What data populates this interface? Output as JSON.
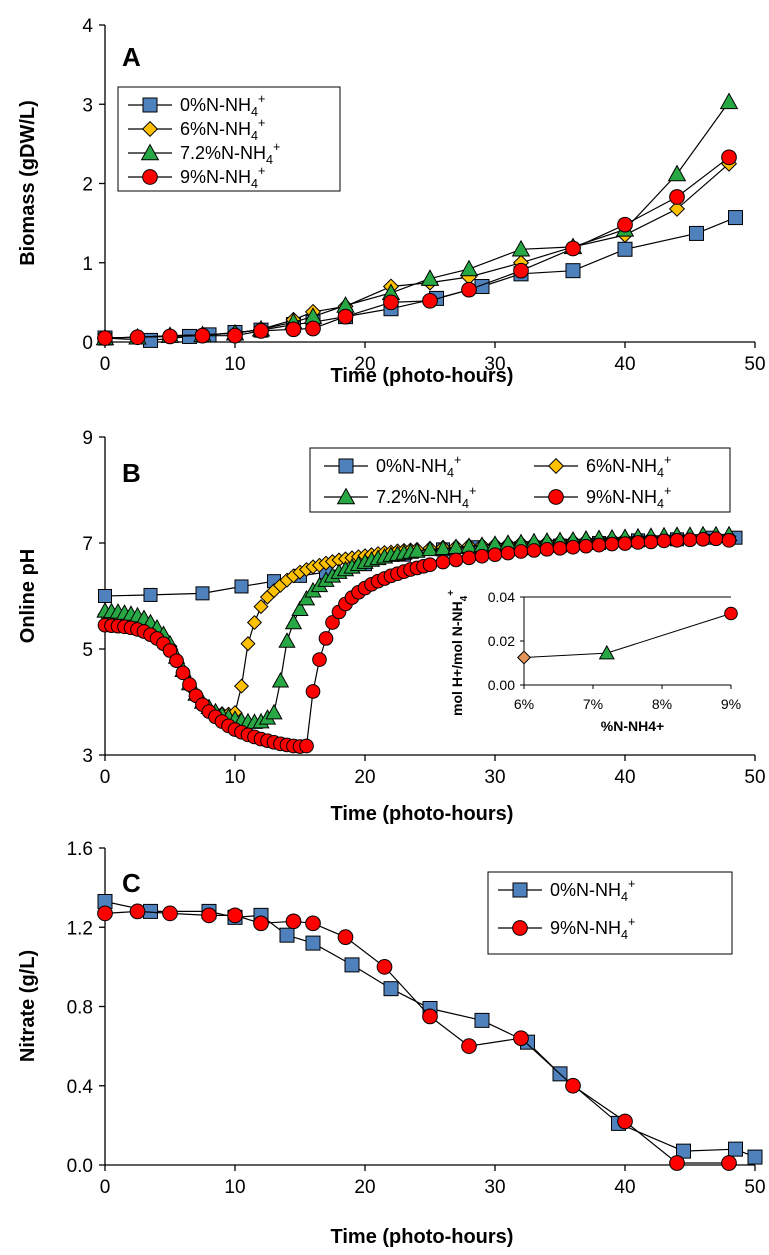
{
  "chart_data": [
    {
      "type": "line",
      "panel": "A",
      "xlabel": "Time (photo-hours)",
      "ylabel": "Biomass (gDW/L)",
      "xlim": [
        0,
        50
      ],
      "ylim": [
        0,
        4
      ],
      "xticks": [
        "0",
        "10",
        "20",
        "30",
        "40",
        "50"
      ],
      "yticks": [
        "0",
        "1",
        "2",
        "3",
        "4"
      ],
      "legend_position": "top-left",
      "series": [
        {
          "label_main": "0%N-NH",
          "label_sub": "4",
          "label_sup": "+",
          "color": "#4f81bd",
          "marker": "square",
          "x": [
            0,
            3.5,
            6.5,
            8,
            10,
            12,
            14.5,
            16,
            18.5,
            22,
            25.5,
            29,
            32,
            36,
            40,
            45.5,
            48.5
          ],
          "y": [
            0.05,
            0.02,
            0.07,
            0.09,
            0.12,
            0.15,
            0.22,
            0.25,
            0.32,
            0.42,
            0.55,
            0.7,
            0.86,
            0.9,
            1.17,
            1.37,
            1.57
          ]
        },
        {
          "label_main": "6%N-NH",
          "label_sub": "4",
          "label_sup": "+",
          "color": "#ffc000",
          "marker": "diamond",
          "x": [
            0,
            2.5,
            5,
            7.5,
            10,
            12,
            14.5,
            16,
            18.5,
            22,
            25,
            28,
            32,
            36,
            40,
            44,
            48
          ],
          "y": [
            0.05,
            0.06,
            0.08,
            0.09,
            0.11,
            0.16,
            0.28,
            0.38,
            0.45,
            0.7,
            0.75,
            0.82,
            1.0,
            1.2,
            1.35,
            1.68,
            2.25
          ]
        },
        {
          "label_main": "7.2%N-NH",
          "label_sub": "4",
          "label_sup": "+",
          "color": "#27a844",
          "marker": "triangle",
          "x": [
            0,
            2.5,
            5,
            7.5,
            10,
            12,
            14.5,
            16,
            18.5,
            22,
            25,
            28,
            32,
            36,
            40,
            44,
            48
          ],
          "y": [
            0.05,
            0.06,
            0.08,
            0.09,
            0.11,
            0.16,
            0.25,
            0.32,
            0.46,
            0.62,
            0.8,
            0.92,
            1.17,
            1.2,
            1.42,
            2.12,
            3.03
          ]
        },
        {
          "label_main": "9%N-NH",
          "label_sub": "4",
          "label_sup": "+",
          "color": "#ff0000",
          "marker": "circle",
          "x": [
            0,
            2.5,
            5,
            7.5,
            10,
            12,
            14.5,
            16,
            18.5,
            22,
            25,
            28,
            32,
            36,
            40,
            44,
            48
          ],
          "y": [
            0.05,
            0.06,
            0.07,
            0.08,
            0.08,
            0.14,
            0.16,
            0.17,
            0.32,
            0.5,
            0.52,
            0.66,
            0.9,
            1.18,
            1.48,
            1.83,
            2.33
          ]
        }
      ]
    },
    {
      "type": "line",
      "panel": "B",
      "xlabel": "Time (photo-hours)",
      "ylabel": "Online pH",
      "xlim": [
        0,
        50
      ],
      "ylim": [
        3,
        9
      ],
      "xticks": [
        "0",
        "10",
        "20",
        "30",
        "40",
        "50"
      ],
      "yticks": [
        "3",
        "5",
        "7",
        "9"
      ],
      "legend_position": "top-right",
      "series": [
        {
          "label_main": "0%N-NH",
          "label_sub": "4",
          "label_sup": "+",
          "color": "#4f81bd",
          "marker": "square",
          "x": [
            0,
            3.5,
            7.5,
            10.5,
            13,
            15,
            17,
            20,
            23,
            26,
            28.5,
            32,
            35,
            38,
            41,
            44,
            46.5,
            48.5
          ],
          "y": [
            6.0,
            6.02,
            6.05,
            6.18,
            6.28,
            6.38,
            6.45,
            6.6,
            6.78,
            6.88,
            6.92,
            6.9,
            6.95,
            7.0,
            7.05,
            7.07,
            7.1,
            7.1
          ]
        },
        {
          "label_main": "6%N-NH",
          "label_sub": "4",
          "label_sup": "+",
          "color": "#ffc000",
          "marker": "diamond",
          "x": [
            0,
            0.5,
            1,
            1.5,
            2,
            2.5,
            3,
            3.5,
            4,
            4.5,
            5,
            5.5,
            6,
            6.5,
            7,
            7.5,
            8,
            8.5,
            9,
            9.5,
            10,
            10.5,
            11,
            11.5,
            12,
            12.5,
            13,
            13.5,
            14,
            14.5,
            15,
            15.5,
            16,
            16.5,
            17,
            17.5,
            18,
            18.5,
            19,
            19.5,
            20,
            20.5,
            21,
            21.5,
            22,
            22.5,
            23,
            23.5,
            24,
            25,
            26,
            27,
            28,
            29,
            30,
            31,
            32,
            33,
            34,
            35,
            36,
            37,
            38,
            39,
            40,
            41,
            42,
            43,
            44,
            45,
            46,
            47,
            48
          ],
          "y": [
            5.65,
            5.64,
            5.63,
            5.62,
            5.6,
            5.56,
            5.5,
            5.42,
            5.32,
            5.2,
            5.05,
            4.8,
            4.55,
            4.3,
            4.1,
            3.95,
            3.85,
            3.8,
            3.78,
            3.77,
            3.8,
            4.3,
            5.1,
            5.5,
            5.8,
            5.98,
            6.1,
            6.2,
            6.3,
            6.38,
            6.45,
            6.5,
            6.55,
            6.58,
            6.62,
            6.65,
            6.68,
            6.7,
            6.72,
            6.74,
            6.76,
            6.78,
            6.8,
            6.82,
            6.83,
            6.85,
            6.86,
            6.87,
            6.88,
            6.9,
            6.92,
            6.93,
            6.95,
            6.96,
            6.97,
            6.98,
            7.0,
            7.0,
            7.02,
            7.03,
            7.04,
            7.05,
            7.06,
            7.07,
            7.08,
            7.09,
            7.1,
            7.1,
            7.11,
            7.11,
            7.12,
            7.12,
            7.12
          ]
        },
        {
          "label_main": "7.2%N-NH",
          "label_sub": "4",
          "label_sup": "+",
          "color": "#27a844",
          "marker": "triangle",
          "x": [
            0,
            0.5,
            1,
            1.5,
            2,
            2.5,
            3,
            3.5,
            4,
            4.5,
            5,
            5.5,
            6,
            6.5,
            7,
            7.5,
            8,
            8.5,
            9,
            9.5,
            10,
            10.5,
            11,
            11.5,
            12,
            12.5,
            13,
            13.5,
            14,
            14.5,
            15,
            15.5,
            16,
            16.5,
            17,
            17.5,
            18,
            18.5,
            19,
            19.5,
            20,
            20.5,
            21,
            21.5,
            22,
            22.5,
            23,
            23.5,
            24,
            25,
            26,
            27,
            28,
            29,
            30,
            31,
            32,
            33,
            34,
            35,
            36,
            37,
            38,
            39,
            40,
            41,
            42,
            43,
            44,
            45,
            46,
            47,
            48
          ],
          "y": [
            5.72,
            5.71,
            5.7,
            5.68,
            5.66,
            5.63,
            5.58,
            5.5,
            5.4,
            5.28,
            5.1,
            4.85,
            4.6,
            4.35,
            4.15,
            4.0,
            3.9,
            3.82,
            3.76,
            3.72,
            3.68,
            3.65,
            3.63,
            3.62,
            3.63,
            3.7,
            3.8,
            4.4,
            5.15,
            5.5,
            5.75,
            5.95,
            6.1,
            6.2,
            6.3,
            6.38,
            6.45,
            6.5,
            6.55,
            6.6,
            6.64,
            6.68,
            6.71,
            6.74,
            6.77,
            6.79,
            6.81,
            6.83,
            6.85,
            6.88,
            6.9,
            6.92,
            6.94,
            6.96,
            6.98,
            7.0,
            7.01,
            7.03,
            7.04,
            7.05,
            7.06,
            7.08,
            7.09,
            7.1,
            7.11,
            7.12,
            7.13,
            7.14,
            7.15,
            7.15,
            7.16,
            7.16,
            7.16
          ]
        },
        {
          "label_main": "9%N-NH",
          "label_sub": "4",
          "label_sup": "+",
          "color": "#ff0000",
          "marker": "circle",
          "x": [
            0,
            0.5,
            1,
            1.5,
            2,
            2.5,
            3,
            3.5,
            4,
            4.5,
            5,
            5.5,
            6,
            6.5,
            7,
            7.5,
            8,
            8.5,
            9,
            9.5,
            10,
            10.5,
            11,
            11.5,
            12,
            12.5,
            13,
            13.5,
            14,
            14.5,
            15,
            15.5,
            16,
            16.5,
            17,
            17.5,
            18,
            18.5,
            19,
            19.5,
            20,
            20.5,
            21,
            21.5,
            22,
            22.5,
            23,
            23.5,
            24,
            24.5,
            25,
            26,
            27,
            28,
            29,
            30,
            31,
            32,
            33,
            34,
            35,
            36,
            37,
            38,
            39,
            40,
            41,
            42,
            43,
            44,
            45,
            46,
            47,
            48
          ],
          "y": [
            5.45,
            5.44,
            5.43,
            5.42,
            5.4,
            5.37,
            5.33,
            5.27,
            5.2,
            5.1,
            4.97,
            4.78,
            4.55,
            4.33,
            4.12,
            3.95,
            3.82,
            3.72,
            3.63,
            3.55,
            3.48,
            3.43,
            3.38,
            3.34,
            3.3,
            3.27,
            3.24,
            3.21,
            3.19,
            3.17,
            3.16,
            3.17,
            4.2,
            4.8,
            5.2,
            5.5,
            5.7,
            5.85,
            5.97,
            6.07,
            6.15,
            6.22,
            6.28,
            6.33,
            6.38,
            6.42,
            6.46,
            6.5,
            6.53,
            6.56,
            6.59,
            6.64,
            6.68,
            6.72,
            6.75,
            6.78,
            6.81,
            6.84,
            6.86,
            6.88,
            6.9,
            6.92,
            6.94,
            6.96,
            6.98,
            6.99,
            7.01,
            7.02,
            7.04,
            7.05,
            7.06,
            7.07,
            7.08,
            7.05
          ]
        }
      ],
      "inset": {
        "type": "scatter",
        "xlabel": "%N-NH4+",
        "ylabel_main": "mol H+/mol N-NH",
        "ylabel_sub": "4",
        "ylabel_sup": "+",
        "xlim": [
          6,
          9
        ],
        "ylim": [
          0,
          0.04
        ],
        "xticks": [
          "6%",
          "7%",
          "8%",
          "9%"
        ],
        "yticks": [
          "0.00",
          "0.02",
          "0.04"
        ],
        "points": [
          {
            "x": 6,
            "y": 0.0125,
            "color": "#e6955a",
            "marker": "diamond"
          },
          {
            "x": 7.2,
            "y": 0.0145,
            "color": "#27a844",
            "marker": "triangle"
          },
          {
            "x": 9,
            "y": 0.0325,
            "color": "#ff0000",
            "marker": "circle"
          }
        ]
      }
    },
    {
      "type": "line",
      "panel": "C",
      "xlabel": "Time (photo-hours)",
      "ylabel": "Nitrate (g/L)",
      "xlim": [
        0,
        50
      ],
      "ylim": [
        0,
        1.6
      ],
      "xticks": [
        "0",
        "10",
        "20",
        "30",
        "40",
        "50"
      ],
      "yticks": [
        "0.0",
        "0.4",
        "0.8",
        "1.2",
        "1.6"
      ],
      "legend_position": "top-right",
      "series": [
        {
          "label_main": "0%N-NH",
          "label_sub": "4",
          "label_sup": "+",
          "color": "#4f81bd",
          "marker": "square",
          "x": [
            0,
            3.5,
            8,
            10,
            12,
            14,
            16,
            19,
            22,
            25,
            29,
            32.5,
            35,
            39.5,
            44.5,
            48.5,
            50
          ],
          "y": [
            1.33,
            1.28,
            1.28,
            1.25,
            1.26,
            1.16,
            1.12,
            1.01,
            0.89,
            0.79,
            0.73,
            0.62,
            0.46,
            0.21,
            0.07,
            0.08,
            0.04
          ]
        },
        {
          "label_main": "9%N-NH",
          "label_sub": "4",
          "label_sup": "+",
          "color": "#ff0000",
          "marker": "circle",
          "x": [
            0,
            2.5,
            5,
            8,
            10,
            12,
            14.5,
            16,
            18.5,
            21.5,
            25,
            28,
            32,
            36,
            40,
            44,
            48
          ],
          "y": [
            1.27,
            1.28,
            1.27,
            1.26,
            1.26,
            1.22,
            1.23,
            1.22,
            1.15,
            1.0,
            0.75,
            0.6,
            0.64,
            0.4,
            0.22,
            0.01,
            0.01
          ]
        }
      ]
    }
  ],
  "panel_letters": [
    "A",
    "B",
    "C"
  ]
}
